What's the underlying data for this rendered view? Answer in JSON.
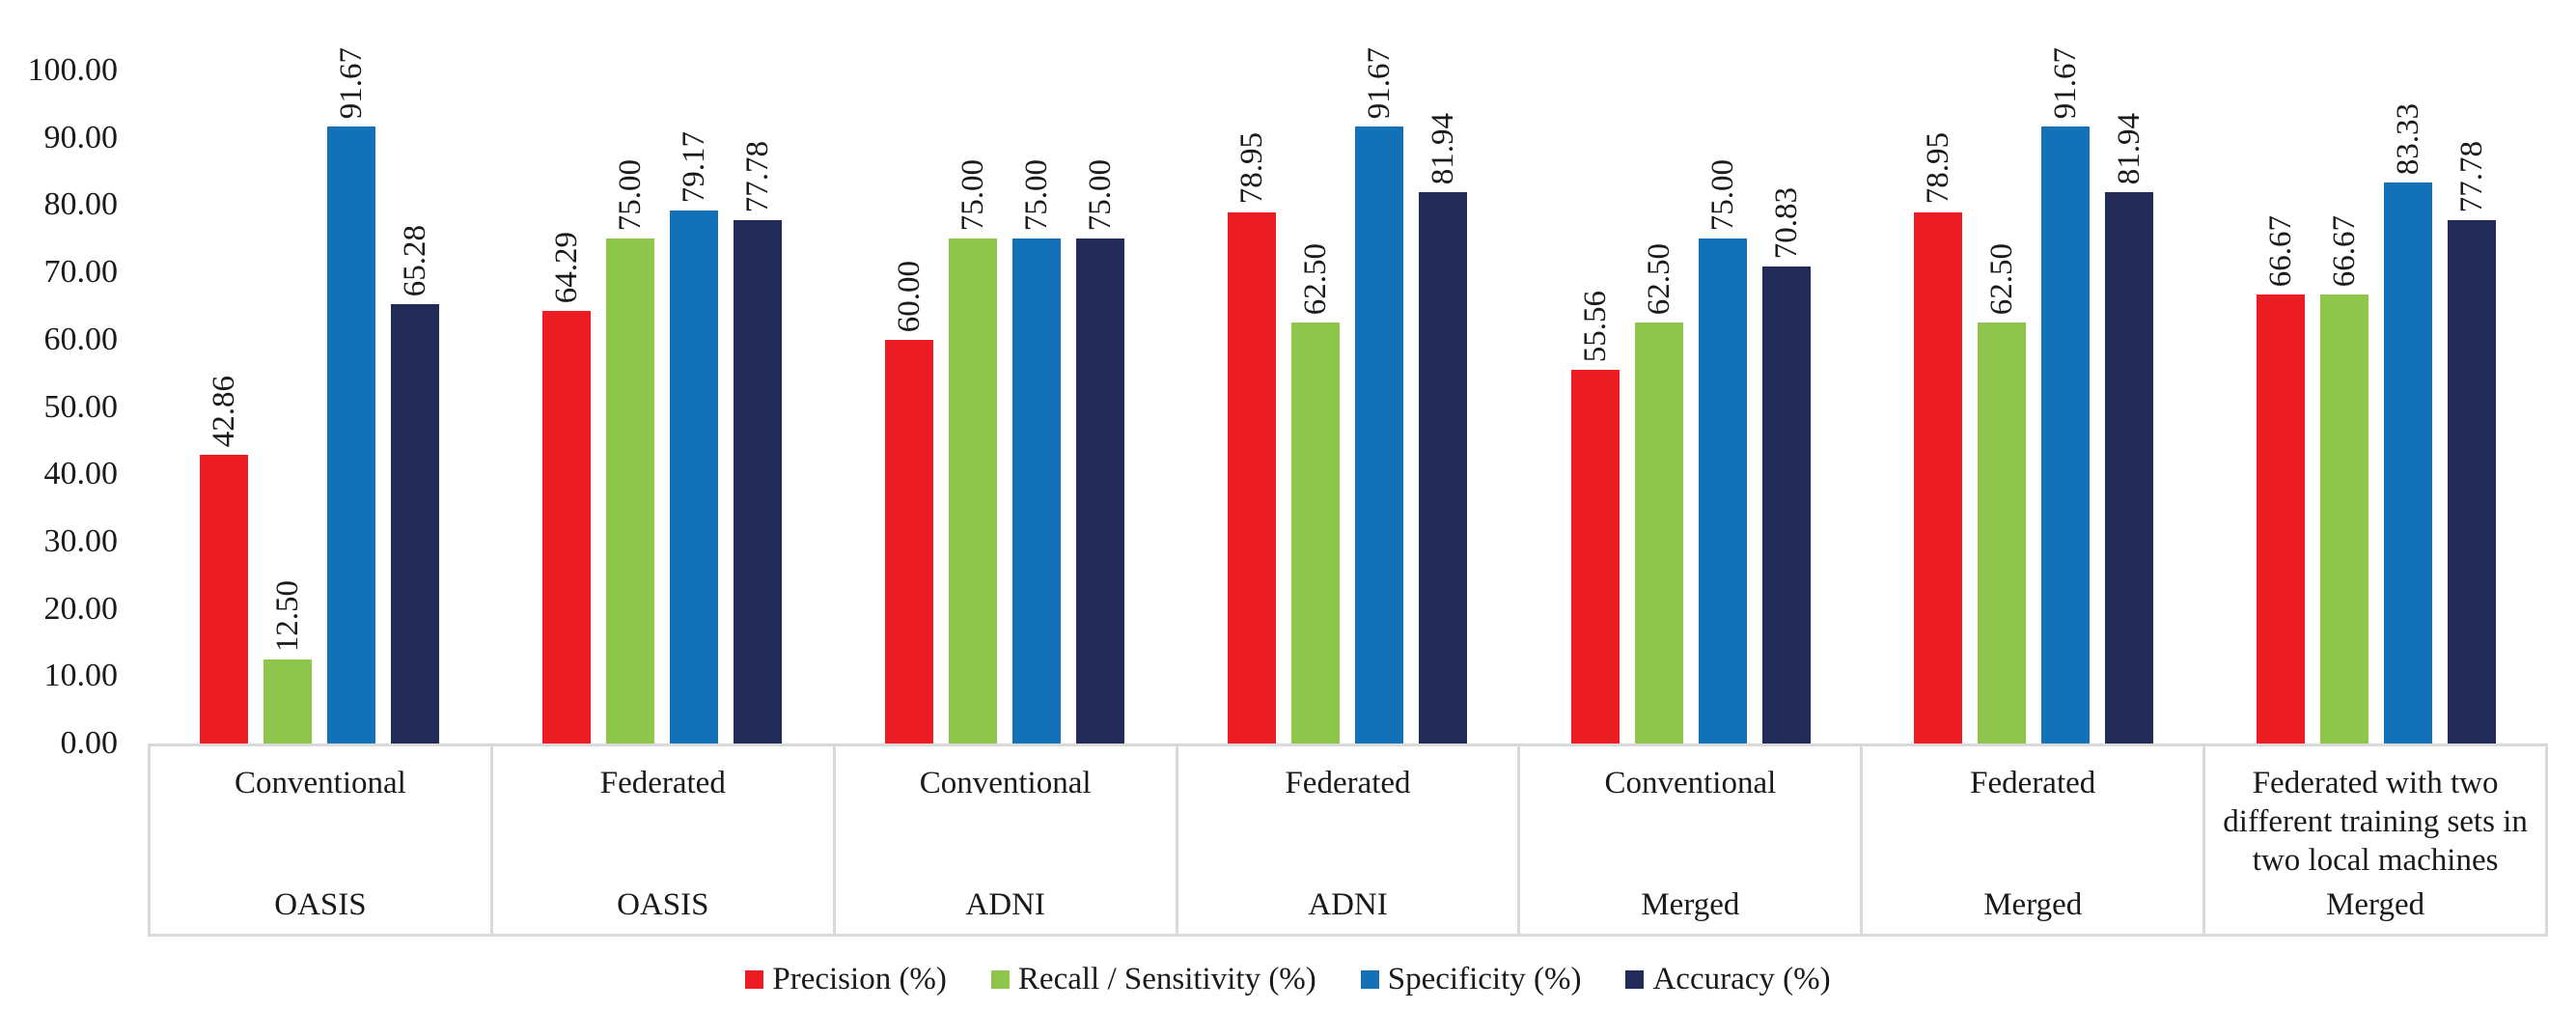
{
  "chart_data": {
    "type": "bar",
    "title": "",
    "xlabel": "",
    "ylabel": "",
    "ylim": [
      0,
      100
    ],
    "y_tick_step": 10,
    "y_ticks": [
      "0.00",
      "10.00",
      "20.00",
      "30.00",
      "40.00",
      "50.00",
      "60.00",
      "70.00",
      "80.00",
      "90.00",
      "100.00"
    ],
    "grid": false,
    "legend_position": "bottom",
    "value_label_decimals": 2,
    "value_label_orientation": "vertical",
    "groups": [
      {
        "method": "Conventional",
        "dataset": "OASIS"
      },
      {
        "method": "Federated",
        "dataset": "OASIS"
      },
      {
        "method": "Conventional",
        "dataset": "ADNI"
      },
      {
        "method": "Federated",
        "dataset": "ADNI"
      },
      {
        "method": "Conventional",
        "dataset": "Merged"
      },
      {
        "method": "Federated",
        "dataset": "Merged"
      },
      {
        "method": "Federated with two different training sets in two local machines",
        "dataset": "Merged"
      }
    ],
    "series": [
      {
        "name": "Precision (%)",
        "color": "#EC1C24",
        "values": [
          42.86,
          64.29,
          60.0,
          78.95,
          55.56,
          78.95,
          66.67
        ]
      },
      {
        "name": "Recall / Sensitivity (%)",
        "color": "#8DC64B",
        "values": [
          12.5,
          75.0,
          75.0,
          62.5,
          62.5,
          62.5,
          66.67
        ]
      },
      {
        "name": "Specificity (%)",
        "color": "#1371B8",
        "values": [
          91.67,
          79.17,
          75.0,
          91.67,
          75.0,
          91.67,
          83.33
        ]
      },
      {
        "name": "Accuracy (%)",
        "color": "#222B58",
        "values": [
          65.28,
          77.78,
          75.0,
          81.94,
          70.83,
          81.94,
          77.78
        ]
      }
    ],
    "axis_line_color": "#D9D9D9"
  }
}
